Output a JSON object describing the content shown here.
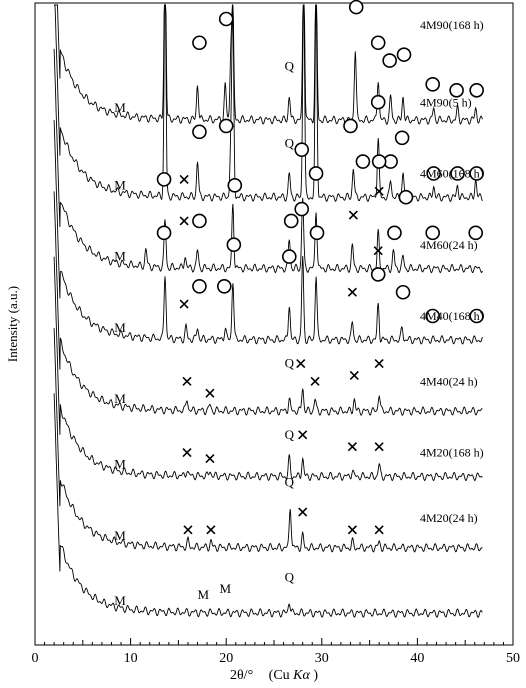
{
  "chart_data": {
    "type": "line",
    "title": "",
    "xlabel_parts": [
      "2θ/°",
      "(Cu",
      "Kα",
      ")"
    ],
    "ylabel": "Intensity (a.u.)",
    "xlim": [
      0,
      50
    ],
    "x_ticks": [
      0,
      10,
      20,
      30,
      40,
      50
    ],
    "y_ticks_shown": false,
    "grid": false,
    "legend": "none",
    "series": [
      {
        "name": "4M90(168 h)",
        "baseline": 0.85,
        "peaks": [
          [
            13.6,
            0.3
          ],
          [
            17.0,
            0.06
          ],
          [
            19.9,
            0.06
          ],
          [
            20.5,
            0.12
          ],
          [
            20.7,
            0.18
          ],
          [
            26.6,
            0.04
          ],
          [
            28.1,
            0.28
          ],
          [
            29.4,
            0.26
          ],
          [
            33.5,
            0.12
          ],
          [
            35.9,
            0.07
          ],
          [
            37.2,
            0.04
          ],
          [
            38.5,
            0.04
          ],
          [
            41.7,
            0.02
          ],
          [
            44.2,
            0.02
          ],
          [
            46.1,
            0.02
          ]
        ],
        "symbols": [
          {
            "s": "M",
            "x": 8.9,
            "y": 0.0
          },
          {
            "s": "O",
            "x": 13.9,
            "y": 0.34
          },
          {
            "s": "O",
            "x": 17.2,
            "y": 0.11
          },
          {
            "s": "O",
            "x": 20.0,
            "y": 0.15
          },
          {
            "s": "O",
            "x": 20.8,
            "y": 0.24
          },
          {
            "s": "Q",
            "x": 26.6,
            "y": 0.07
          },
          {
            "s": "O",
            "x": 28.0,
            "y": 0.32
          },
          {
            "s": "O",
            "x": 29.5,
            "y": 0.3
          },
          {
            "s": "O",
            "x": 33.6,
            "y": 0.17
          },
          {
            "s": "O",
            "x": 35.9,
            "y": 0.11
          },
          {
            "s": "O",
            "x": 37.1,
            "y": 0.08
          },
          {
            "s": "O",
            "x": 38.6,
            "y": 0.09
          },
          {
            "s": "O",
            "x": 41.6,
            "y": 0.04
          },
          {
            "s": "O",
            "x": 44.1,
            "y": 0.03
          },
          {
            "s": "O",
            "x": 46.2,
            "y": 0.03
          }
        ]
      },
      {
        "name": "4M90(5 h)",
        "baseline": 0.72,
        "peaks": [
          [
            13.6,
            0.36
          ],
          [
            17.0,
            0.06
          ],
          [
            20.5,
            0.1
          ],
          [
            20.7,
            0.3
          ],
          [
            26.6,
            0.04
          ],
          [
            28.1,
            0.36
          ],
          [
            29.4,
            0.34
          ],
          [
            33.3,
            0.05
          ],
          [
            35.9,
            0.1
          ],
          [
            37.2,
            0.03
          ],
          [
            38.5,
            0.04
          ],
          [
            41.7,
            0.02
          ],
          [
            44.2,
            0.02
          ],
          [
            46.1,
            0.03
          ]
        ],
        "symbols": [
          {
            "s": "M",
            "x": 8.9,
            "y": 0.0
          },
          {
            "s": "O",
            "x": 13.7,
            "y": 0.39
          },
          {
            "s": "X",
            "x": 15.6,
            "y": 0.01
          },
          {
            "s": "O",
            "x": 17.2,
            "y": 0.09
          },
          {
            "s": "O",
            "x": 20.0,
            "y": 0.1
          },
          {
            "s": "O",
            "x": 20.8,
            "y": 0.34
          },
          {
            "s": "Q",
            "x": 26.6,
            "y": 0.07
          },
          {
            "s": "O",
            "x": 28.0,
            "y": 0.4
          },
          {
            "s": "O",
            "x": 29.4,
            "y": 0.38
          },
          {
            "s": "O",
            "x": 33.0,
            "y": 0.1
          },
          {
            "s": "O",
            "x": 34.3,
            "y": 0.04
          },
          {
            "s": "O",
            "x": 35.9,
            "y": 0.14
          },
          {
            "s": "O",
            "x": 37.2,
            "y": 0.04
          },
          {
            "s": "O",
            "x": 38.4,
            "y": 0.08
          },
          {
            "s": "O",
            "x": 41.7,
            "y": 0.02
          },
          {
            "s": "O",
            "x": 44.2,
            "y": 0.02
          },
          {
            "s": "O",
            "x": 46.2,
            "y": 0.02
          }
        ]
      },
      {
        "name": "4M60(168 h)",
        "baseline": 0.6,
        "peaks": [
          [
            11.6,
            0.03
          ],
          [
            13.6,
            0.08
          ],
          [
            15.7,
            0.02
          ],
          [
            17.0,
            0.03
          ],
          [
            20.7,
            0.11
          ],
          [
            26.6,
            0.05
          ],
          [
            28.0,
            0.12
          ],
          [
            29.4,
            0.1
          ],
          [
            33.2,
            0.04
          ],
          [
            35.9,
            0.06
          ],
          [
            37.5,
            0.03
          ],
          [
            38.5,
            0.02
          ]
        ],
        "symbols": [
          {
            "s": "M",
            "x": 8.9,
            "y": 0.0
          },
          {
            "s": "O",
            "x": 13.5,
            "y": 0.13
          },
          {
            "s": "X",
            "x": 15.6,
            "y": 0.06
          },
          {
            "s": "O",
            "x": 17.2,
            "y": 0.06
          },
          {
            "s": "O",
            "x": 20.9,
            "y": 0.12
          },
          {
            "s": "O",
            "x": 26.8,
            "y": 0.06
          },
          {
            "s": "O",
            "x": 27.9,
            "y": 0.18
          },
          {
            "s": "O",
            "x": 29.4,
            "y": 0.14
          },
          {
            "s": "X",
            "x": 33.3,
            "y": 0.07
          },
          {
            "s": "O",
            "x": 36.0,
            "y": 0.16
          },
          {
            "s": "X",
            "x": 36.0,
            "y": 0.11
          },
          {
            "s": "O",
            "x": 38.8,
            "y": 0.1
          },
          {
            "s": "O",
            "x": 37.6,
            "y": 0.04
          },
          {
            "s": "O",
            "x": 41.6,
            "y": 0.04
          },
          {
            "s": "O",
            "x": 46.1,
            "y": 0.04
          }
        ]
      },
      {
        "name": "4M60(24 h)",
        "baseline": 0.48,
        "peaks": [
          [
            13.6,
            0.11
          ],
          [
            15.8,
            0.02
          ],
          [
            17.0,
            0.02
          ],
          [
            19.9,
            0.02
          ],
          [
            20.7,
            0.1
          ],
          [
            26.6,
            0.06
          ],
          [
            28.0,
            0.14
          ],
          [
            29.4,
            0.11
          ],
          [
            33.2,
            0.03
          ],
          [
            35.9,
            0.06
          ],
          [
            38.4,
            0.02
          ]
        ],
        "symbols": [
          {
            "s": "M",
            "x": 8.9,
            "y": 0.0
          },
          {
            "s": "O",
            "x": 13.5,
            "y": 0.16
          },
          {
            "s": "X",
            "x": 15.6,
            "y": 0.04
          },
          {
            "s": "O",
            "x": 17.2,
            "y": 0.07
          },
          {
            "s": "O",
            "x": 19.8,
            "y": 0.07
          },
          {
            "s": "O",
            "x": 20.8,
            "y": 0.14
          },
          {
            "s": "O",
            "x": 26.6,
            "y": 0.12
          },
          {
            "s": "O",
            "x": 27.9,
            "y": 0.2
          },
          {
            "s": "O",
            "x": 29.5,
            "y": 0.16
          },
          {
            "s": "X",
            "x": 33.2,
            "y": 0.06
          },
          {
            "s": "X",
            "x": 35.9,
            "y": 0.13
          },
          {
            "s": "O",
            "x": 35.9,
            "y": 0.09
          },
          {
            "s": "O",
            "x": 38.5,
            "y": 0.06
          },
          {
            "s": "O",
            "x": 41.6,
            "y": 0.02
          },
          {
            "s": "O",
            "x": 46.2,
            "y": 0.02
          }
        ]
      },
      {
        "name": "4M40(168 h)",
        "baseline": 0.36,
        "peaks": [
          [
            15.9,
            0.02
          ],
          [
            18.3,
            0.01
          ],
          [
            26.6,
            0.02
          ],
          [
            28.0,
            0.04
          ],
          [
            29.3,
            0.02
          ],
          [
            33.4,
            0.02
          ],
          [
            36.0,
            0.03
          ]
        ],
        "symbols": [
          {
            "s": "M",
            "x": 8.9,
            "y": 0.0
          },
          {
            "s": "X",
            "x": 15.9,
            "y": 0.03
          },
          {
            "s": "X",
            "x": 18.3,
            "y": 0.01
          },
          {
            "s": "Q",
            "x": 26.6,
            "y": 0.06
          },
          {
            "s": "X",
            "x": 27.8,
            "y": 0.06
          },
          {
            "s": "X",
            "x": 29.3,
            "y": 0.03
          },
          {
            "s": "X",
            "x": 33.4,
            "y": 0.04
          },
          {
            "s": "X",
            "x": 36.0,
            "y": 0.06
          }
        ]
      },
      {
        "name": "4M40(24 h)",
        "baseline": 0.25,
        "peaks": [
          [
            15.9,
            0.01
          ],
          [
            18.3,
            0.01
          ],
          [
            26.6,
            0.03
          ],
          [
            28.0,
            0.03
          ],
          [
            33.2,
            0.01
          ],
          [
            36.0,
            0.02
          ]
        ],
        "symbols": [
          {
            "s": "M",
            "x": 8.9,
            "y": 0.0
          },
          {
            "s": "X",
            "x": 15.9,
            "y": 0.02
          },
          {
            "s": "X",
            "x": 18.3,
            "y": 0.01
          },
          {
            "s": "Q",
            "x": 26.6,
            "y": 0.05
          },
          {
            "s": "X",
            "x": 28.0,
            "y": 0.05
          },
          {
            "s": "X",
            "x": 33.2,
            "y": 0.03
          },
          {
            "s": "X",
            "x": 36.0,
            "y": 0.03
          }
        ]
      },
      {
        "name": "4M20(168 h)",
        "baseline": 0.13,
        "peaks": [
          [
            16.0,
            0.01
          ],
          [
            18.4,
            0.01
          ],
          [
            26.7,
            0.07
          ],
          [
            28.0,
            0.02
          ],
          [
            33.2,
            0.01
          ],
          [
            36.0,
            0.01
          ]
        ],
        "symbols": [
          {
            "s": "M",
            "x": 8.9,
            "y": 0.0
          },
          {
            "s": "X",
            "x": 16.0,
            "y": 0.01
          },
          {
            "s": "X",
            "x": 18.4,
            "y": 0.01
          },
          {
            "s": "Q",
            "x": 26.6,
            "y": 0.09
          },
          {
            "s": "X",
            "x": 28.0,
            "y": 0.04
          },
          {
            "s": "X",
            "x": 33.2,
            "y": 0.01
          },
          {
            "s": "X",
            "x": 36.0,
            "y": 0.01
          }
        ]
      },
      {
        "name": "4M20(24 h)",
        "baseline": 0.02,
        "peaks": [
          [
            26.6,
            0.02
          ]
        ],
        "symbols": [
          {
            "s": "M",
            "x": 8.9,
            "y": 0.0
          },
          {
            "s": "M",
            "x": 17.6,
            "y": 0.01
          },
          {
            "s": "M",
            "x": 19.9,
            "y": 0.02
          },
          {
            "s": "Q",
            "x": 26.6,
            "y": 0.04
          }
        ]
      }
    ]
  }
}
